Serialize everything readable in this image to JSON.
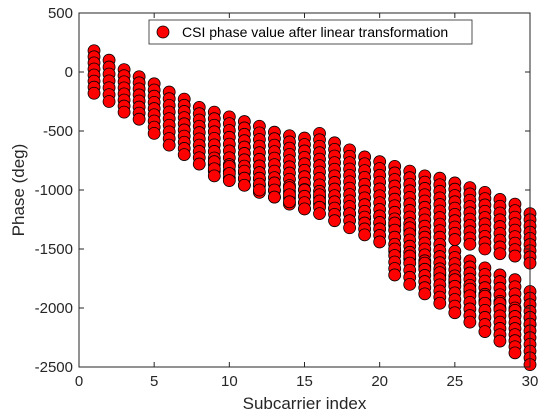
{
  "chart_data": {
    "type": "scatter",
    "title": "",
    "xlabel": "Subcarrier index",
    "ylabel": "Phase (deg)",
    "xlim": [
      0,
      30
    ],
    "ylim": [
      -2500,
      500
    ],
    "xticks": [
      0,
      5,
      10,
      15,
      20,
      25,
      30
    ],
    "yticks": [
      500,
      0,
      -500,
      -1000,
      -1500,
      -2000,
      -2500
    ],
    "grid": false,
    "legend_position": "top",
    "marker_color": "#ff0000",
    "marker_edge_color": "#000000",
    "series": [
      {
        "name": "CSI phase value after linear transformation",
        "bands": [
          {
            "x": [
              1,
              2,
              3,
              4,
              5,
              6,
              7,
              8,
              9,
              10,
              11,
              12,
              13,
              14,
              15,
              16,
              17,
              18,
              19,
              20,
              21,
              22,
              23,
              24,
              25,
              26,
              27,
              28,
              29,
              30
            ],
            "upper": [
              180,
              100,
              20,
              -40,
              -100,
              -170,
              -230,
              -300,
              -340,
              -380,
              -420,
              -460,
              -510,
              -540,
              -560,
              -520,
              -600,
              -660,
              -720,
              -760,
              -800,
              -840,
              -880,
              -900,
              -940,
              -980,
              -1020,
              -1080,
              -1120,
              -1200
            ],
            "lower": [
              -180,
              -250,
              -340,
              -400,
              -520,
              -620,
              -700,
              -780,
              -840,
              -900,
              -960,
              -1020,
              -1060,
              -1120,
              -1160,
              -1120,
              -1160,
              -1200,
              -1240,
              -1280,
              -1300,
              -1340,
              -1360,
              -1400,
              -1420,
              -1460,
              -1500,
              -1540,
              -1560,
              -1620
            ]
          },
          {
            "x": [
              9,
              10,
              11,
              12,
              13,
              14,
              15,
              16,
              17,
              18,
              19,
              20,
              21,
              22,
              23,
              24,
              25,
              26,
              27,
              28,
              29,
              30
            ],
            "upper": [
              -760,
              -800,
              -840,
              -900,
              -940,
              -980,
              -1000,
              -1040,
              -1100,
              -1140,
              -1180,
              -1220,
              -1280,
              -1320,
              -1400,
              -1460,
              -1520,
              -1600,
              -1660,
              -1720,
              -1760,
              -1860
            ],
            "lower": [
              -880,
              -920,
              -960,
              -1000,
              -1060,
              -1100,
              -1160,
              -1200,
              -1260,
              -1320,
              -1380,
              -1440,
              -1520,
              -1580,
              -1650,
              -1720,
              -1780,
              -1860,
              -1940,
              -2000,
              -2060,
              -2140
            ]
          },
          {
            "x": [
              21,
              22,
              23,
              24,
              25,
              26,
              27,
              28,
              29,
              30
            ],
            "upper": [
              -1500,
              -1560,
              -1620,
              -1700,
              -1760,
              -1840,
              -1900,
              -1960,
              -2020,
              -2080
            ],
            "lower": [
              -1720,
              -1800,
              -1880,
              -1960,
              -2040,
              -2120,
              -2200,
              -2280,
              -2380,
              -2480
            ]
          }
        ]
      }
    ]
  }
}
